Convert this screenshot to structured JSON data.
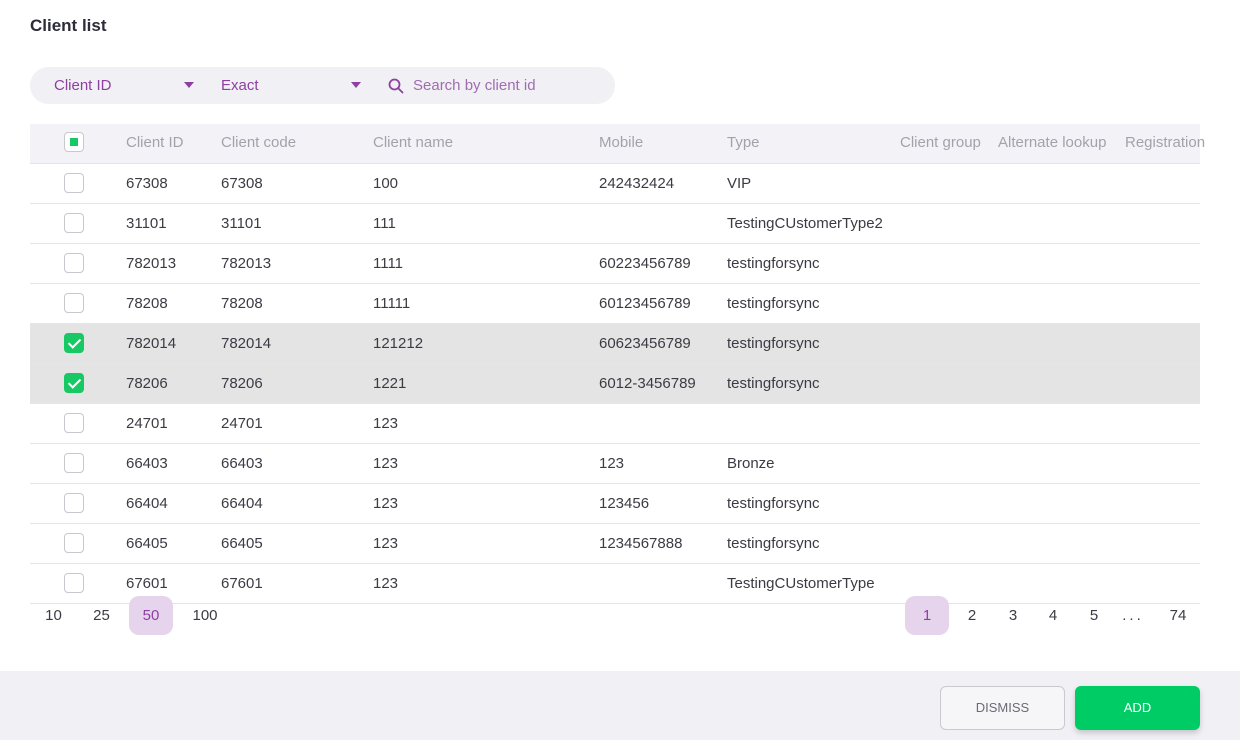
{
  "title": "Client list",
  "filter": {
    "field": "Client ID",
    "match": "Exact",
    "search_placeholder": "Search by client id",
    "search_value": ""
  },
  "columns": [
    "Client ID",
    "Client code",
    "Client name",
    "Mobile",
    "Type",
    "Client group",
    "Alternate lookup",
    "Registration"
  ],
  "rows": [
    {
      "checked": false,
      "id": "67308",
      "code": "67308",
      "name": "100",
      "mobile": "242432424",
      "type": "VIP"
    },
    {
      "checked": false,
      "id": "31101",
      "code": "31101",
      "name": "111",
      "mobile": "",
      "type": "TestingCUstomerType2"
    },
    {
      "checked": false,
      "id": "782013",
      "code": "782013",
      "name": "1111",
      "mobile": "60223456789",
      "type": "testingforsync"
    },
    {
      "checked": false,
      "id": "78208",
      "code": "78208",
      "name": "11111",
      "mobile": "60123456789",
      "type": "testingforsync"
    },
    {
      "checked": true,
      "id": "782014",
      "code": "782014",
      "name": "121212",
      "mobile": "60623456789",
      "type": "testingforsync"
    },
    {
      "checked": true,
      "id": "78206",
      "code": "78206",
      "name": "1221",
      "mobile": "6012-3456789",
      "type": "testingforsync"
    },
    {
      "checked": false,
      "id": "24701",
      "code": "24701",
      "name": "123",
      "mobile": "",
      "type": ""
    },
    {
      "checked": false,
      "id": "66403",
      "code": "66403",
      "name": "123",
      "mobile": "123",
      "type": "Bronze"
    },
    {
      "checked": false,
      "id": "66404",
      "code": "66404",
      "name": "123",
      "mobile": "123456",
      "type": "testingforsync"
    },
    {
      "checked": false,
      "id": "66405",
      "code": "66405",
      "name": "123",
      "mobile": "1234567888",
      "type": "testingforsync"
    },
    {
      "checked": false,
      "id": "67601",
      "code": "67601",
      "name": "123",
      "mobile": "",
      "type": "TestingCUstomerType"
    }
  ],
  "page_sizes": [
    "10",
    "25",
    "50",
    "100"
  ],
  "page_size_selected": "50",
  "pages": [
    "1",
    "2",
    "3",
    "4",
    "5",
    "...",
    "74"
  ],
  "current_page": "1",
  "buttons": {
    "dismiss": "DISMISS",
    "add": "ADD"
  },
  "colors": {
    "accent": "#8e3fa2",
    "accent_bg": "#e6d3ec",
    "check": "#17c964",
    "add": "#00cc66"
  }
}
